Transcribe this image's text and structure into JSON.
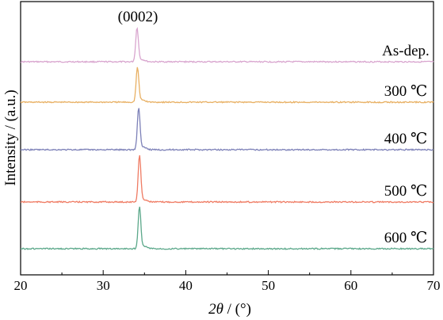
{
  "chart_data": {
    "type": "line",
    "title": "",
    "xlabel": "2θ / (°)",
    "xlabel_symbol": "2θ",
    "xlabel_unit": " / (°)",
    "ylabel": "Intensity / (a.u.)",
    "xlim": [
      20,
      70
    ],
    "xticks": [
      20,
      30,
      40,
      50,
      60,
      70
    ],
    "y_ticks_shown": false,
    "grid": false,
    "legend": "none",
    "peak_annotation": {
      "label": "(0002)",
      "x": 34.2
    },
    "series": [
      {
        "name": "As-dep.",
        "color": "#d9a6cf",
        "peak_x": 34.1,
        "peak_height": 42
      },
      {
        "name": "300 ℃",
        "color": "#e8b063",
        "peak_x": 34.15,
        "peak_height": 43
      },
      {
        "name": "400 ℃",
        "color": "#7d81b8",
        "peak_x": 34.3,
        "peak_height": 52
      },
      {
        "name": "500 ℃",
        "color": "#ef7b63",
        "peak_x": 34.4,
        "peak_height": 58
      },
      {
        "name": "600 ℃",
        "color": "#5ba88a",
        "peak_x": 34.4,
        "peak_height": 52
      }
    ]
  }
}
